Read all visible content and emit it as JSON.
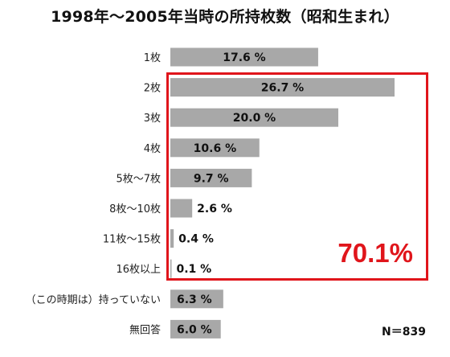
{
  "chart_data": {
    "type": "bar",
    "orientation": "horizontal",
    "title": "1998年～2005年当時の所持枚数（昭和生まれ）",
    "categories": [
      "1枚",
      "2枚",
      "3枚",
      "4枚",
      "5枚～7枚",
      "8枚～10枚",
      "11枚～15枚",
      "16枚以上",
      "（この時期は）持っていない",
      "無回答"
    ],
    "values": [
      17.6,
      26.7,
      20.0,
      10.6,
      9.7,
      2.6,
      0.4,
      0.1,
      6.3,
      6.0
    ],
    "value_labels": [
      "17.6 %",
      "26.7 %",
      "20.0 %",
      "10.6 %",
      "9.7 %",
      "2.6 %",
      "0.4 %",
      "0.1 %",
      "6.3 %",
      "6.0 %"
    ],
    "xlim": [
      0,
      30
    ],
    "grid": false,
    "legend": "none",
    "colors": {
      "bar": "#a8a8a8",
      "highlight": "#e0151b"
    },
    "highlight": {
      "categories": [
        "2枚",
        "3枚",
        "4枚",
        "5枚～7枚",
        "8枚～10枚",
        "11枚～15枚",
        "16枚以上"
      ],
      "label": "70.1%"
    },
    "sample_size": "N＝839"
  }
}
